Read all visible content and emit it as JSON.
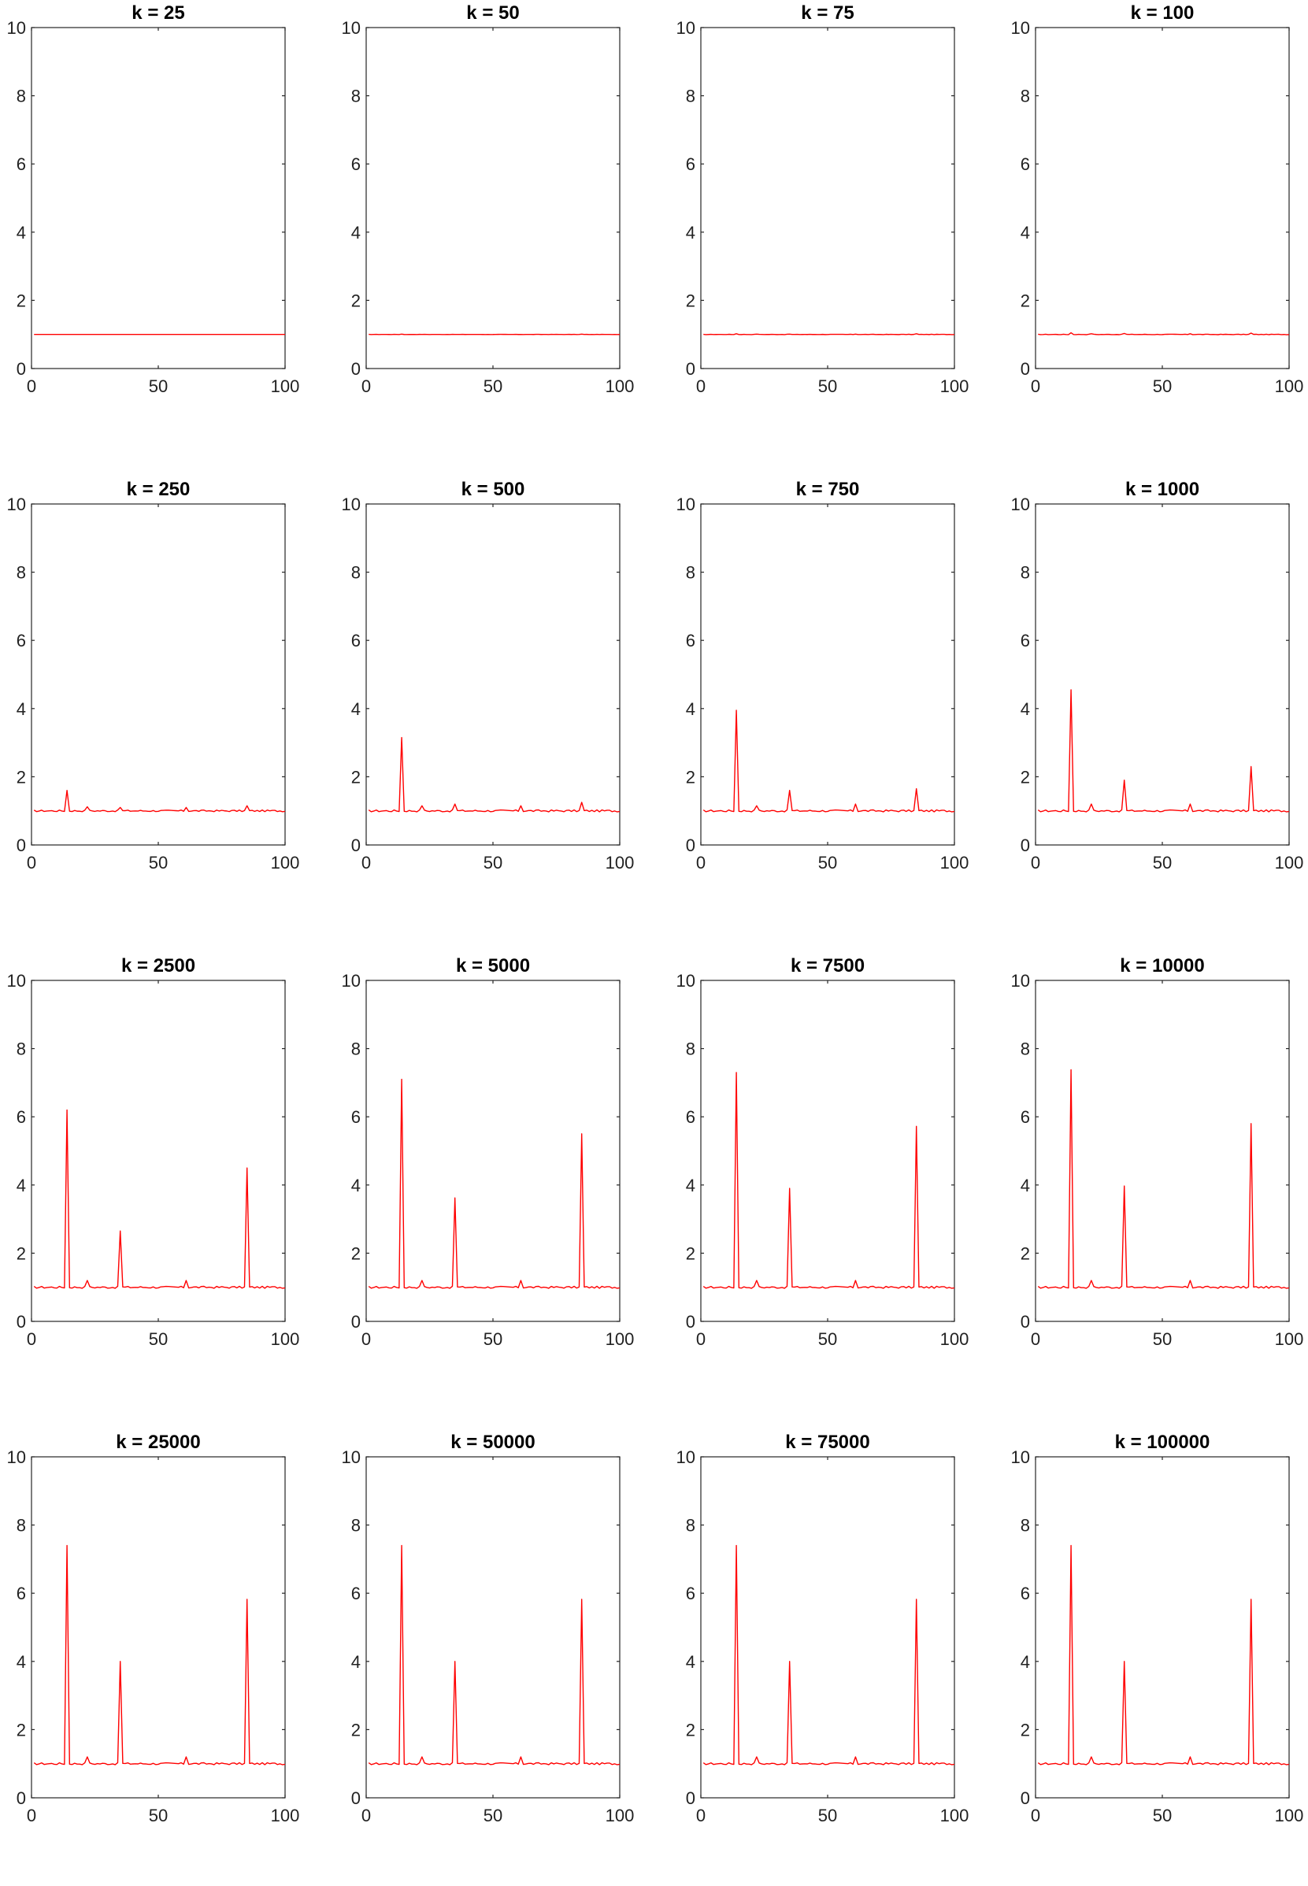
{
  "figure": {
    "line_color": "#ff0000",
    "axis_color": "#262626"
  },
  "chart_data": [
    {
      "type": "line",
      "title": "k = 25",
      "xlim": [
        0,
        100
      ],
      "ylim": [
        0,
        10
      ],
      "xticks": [
        "0",
        "50",
        "100"
      ],
      "yticks": [
        "0",
        "2",
        "4",
        "6",
        "8",
        "10"
      ],
      "peaks": [
        [
          14,
          1.0
        ],
        [
          22,
          1.0
        ],
        [
          35,
          1.0
        ],
        [
          61,
          1.0
        ],
        [
          85,
          1.0
        ]
      ],
      "noise": 0.0
    },
    {
      "type": "line",
      "title": "k = 50",
      "xlim": [
        0,
        100
      ],
      "ylim": [
        0,
        10
      ],
      "xticks": [
        "0",
        "50",
        "100"
      ],
      "yticks": [
        "0",
        "2",
        "4",
        "6",
        "8",
        "10"
      ],
      "peaks": [
        [
          14,
          1.01
        ],
        [
          22,
          1.0
        ],
        [
          35,
          1.0
        ],
        [
          61,
          1.0
        ],
        [
          85,
          1.01
        ]
      ],
      "noise": 0.005
    },
    {
      "type": "line",
      "title": "k = 75",
      "xlim": [
        0,
        100
      ],
      "ylim": [
        0,
        10
      ],
      "xticks": [
        "0",
        "50",
        "100"
      ],
      "yticks": [
        "0",
        "2",
        "4",
        "6",
        "8",
        "10"
      ],
      "peaks": [
        [
          14,
          1.02
        ],
        [
          22,
          1.01
        ],
        [
          35,
          1.01
        ],
        [
          61,
          1.01
        ],
        [
          85,
          1.02
        ]
      ],
      "noise": 0.01
    },
    {
      "type": "line",
      "title": "k = 100",
      "xlim": [
        0,
        100
      ],
      "ylim": [
        0,
        10
      ],
      "xticks": [
        "0",
        "50",
        "100"
      ],
      "yticks": [
        "0",
        "2",
        "4",
        "6",
        "8",
        "10"
      ],
      "peaks": [
        [
          14,
          1.05
        ],
        [
          22,
          1.02
        ],
        [
          35,
          1.03
        ],
        [
          61,
          1.02
        ],
        [
          85,
          1.04
        ]
      ],
      "noise": 0.015
    },
    {
      "type": "line",
      "title": "k = 250",
      "xlim": [
        0,
        100
      ],
      "ylim": [
        0,
        10
      ],
      "xticks": [
        "0",
        "50",
        "100"
      ],
      "yticks": [
        "0",
        "2",
        "4",
        "6",
        "8",
        "10"
      ],
      "peaks": [
        [
          14,
          1.6
        ],
        [
          22,
          1.12
        ],
        [
          35,
          1.1
        ],
        [
          61,
          1.1
        ],
        [
          85,
          1.15
        ]
      ],
      "noise": 0.05
    },
    {
      "type": "line",
      "title": "k = 500",
      "xlim": [
        0,
        100
      ],
      "ylim": [
        0,
        10
      ],
      "xticks": [
        "0",
        "50",
        "100"
      ],
      "yticks": [
        "0",
        "2",
        "4",
        "6",
        "8",
        "10"
      ],
      "peaks": [
        [
          14,
          3.15
        ],
        [
          22,
          1.15
        ],
        [
          35,
          1.2
        ],
        [
          61,
          1.15
        ],
        [
          85,
          1.25
        ]
      ],
      "noise": 0.06
    },
    {
      "type": "line",
      "title": "k = 750",
      "xlim": [
        0,
        100
      ],
      "ylim": [
        0,
        10
      ],
      "xticks": [
        "0",
        "50",
        "100"
      ],
      "yticks": [
        "0",
        "2",
        "4",
        "6",
        "8",
        "10"
      ],
      "peaks": [
        [
          14,
          3.95
        ],
        [
          22,
          1.15
        ],
        [
          35,
          1.6
        ],
        [
          61,
          1.2
        ],
        [
          85,
          1.65
        ]
      ],
      "noise": 0.06
    },
    {
      "type": "line",
      "title": "k = 1000",
      "xlim": [
        0,
        100
      ],
      "ylim": [
        0,
        10
      ],
      "xticks": [
        "0",
        "50",
        "100"
      ],
      "yticks": [
        "0",
        "2",
        "4",
        "6",
        "8",
        "10"
      ],
      "peaks": [
        [
          14,
          4.55
        ],
        [
          22,
          1.2
        ],
        [
          35,
          1.9
        ],
        [
          61,
          1.2
        ],
        [
          85,
          2.3
        ]
      ],
      "noise": 0.06
    },
    {
      "type": "line",
      "title": "k = 2500",
      "xlim": [
        0,
        100
      ],
      "ylim": [
        0,
        10
      ],
      "xticks": [
        "0",
        "50",
        "100"
      ],
      "yticks": [
        "0",
        "2",
        "4",
        "6",
        "8",
        "10"
      ],
      "peaks": [
        [
          14,
          6.2
        ],
        [
          22,
          1.2
        ],
        [
          35,
          2.65
        ],
        [
          61,
          1.2
        ],
        [
          85,
          4.5
        ]
      ],
      "noise": 0.06
    },
    {
      "type": "line",
      "title": "k = 5000",
      "xlim": [
        0,
        100
      ],
      "ylim": [
        0,
        10
      ],
      "xticks": [
        "0",
        "50",
        "100"
      ],
      "yticks": [
        "0",
        "2",
        "4",
        "6",
        "8",
        "10"
      ],
      "peaks": [
        [
          14,
          7.1
        ],
        [
          22,
          1.2
        ],
        [
          35,
          3.62
        ],
        [
          61,
          1.2
        ],
        [
          85,
          5.5
        ]
      ],
      "noise": 0.06
    },
    {
      "type": "line",
      "title": "k = 7500",
      "xlim": [
        0,
        100
      ],
      "ylim": [
        0,
        10
      ],
      "xticks": [
        "0",
        "50",
        "100"
      ],
      "yticks": [
        "0",
        "2",
        "4",
        "6",
        "8",
        "10"
      ],
      "peaks": [
        [
          14,
          7.3
        ],
        [
          22,
          1.2
        ],
        [
          35,
          3.9
        ],
        [
          61,
          1.2
        ],
        [
          85,
          5.72
        ]
      ],
      "noise": 0.06
    },
    {
      "type": "line",
      "title": "k = 10000",
      "xlim": [
        0,
        100
      ],
      "ylim": [
        0,
        10
      ],
      "xticks": [
        "0",
        "50",
        "100"
      ],
      "yticks": [
        "0",
        "2",
        "4",
        "6",
        "8",
        "10"
      ],
      "peaks": [
        [
          14,
          7.38
        ],
        [
          22,
          1.2
        ],
        [
          35,
          3.97
        ],
        [
          61,
          1.2
        ],
        [
          85,
          5.8
        ]
      ],
      "noise": 0.06
    },
    {
      "type": "line",
      "title": "k = 25000",
      "xlim": [
        0,
        100
      ],
      "ylim": [
        0,
        10
      ],
      "xticks": [
        "0",
        "50",
        "100"
      ],
      "yticks": [
        "0",
        "2",
        "4",
        "6",
        "8",
        "10"
      ],
      "peaks": [
        [
          14,
          7.4
        ],
        [
          22,
          1.2
        ],
        [
          35,
          4.0
        ],
        [
          61,
          1.2
        ],
        [
          85,
          5.82
        ]
      ],
      "noise": 0.06
    },
    {
      "type": "line",
      "title": "k = 50000",
      "xlim": [
        0,
        100
      ],
      "ylim": [
        0,
        10
      ],
      "xticks": [
        "0",
        "50",
        "100"
      ],
      "yticks": [
        "0",
        "2",
        "4",
        "6",
        "8",
        "10"
      ],
      "peaks": [
        [
          14,
          7.4
        ],
        [
          22,
          1.2
        ],
        [
          35,
          4.0
        ],
        [
          61,
          1.2
        ],
        [
          85,
          5.82
        ]
      ],
      "noise": 0.06
    },
    {
      "type": "line",
      "title": "k = 75000",
      "xlim": [
        0,
        100
      ],
      "ylim": [
        0,
        10
      ],
      "xticks": [
        "0",
        "50",
        "100"
      ],
      "yticks": [
        "0",
        "2",
        "4",
        "6",
        "8",
        "10"
      ],
      "peaks": [
        [
          14,
          7.4
        ],
        [
          22,
          1.2
        ],
        [
          35,
          4.0
        ],
        [
          61,
          1.2
        ],
        [
          85,
          5.82
        ]
      ],
      "noise": 0.06
    },
    {
      "type": "line",
      "title": "k = 100000",
      "xlim": [
        0,
        100
      ],
      "ylim": [
        0,
        10
      ],
      "xticks": [
        "0",
        "50",
        "100"
      ],
      "yticks": [
        "0",
        "2",
        "4",
        "6",
        "8",
        "10"
      ],
      "peaks": [
        [
          14,
          7.4
        ],
        [
          22,
          1.2
        ],
        [
          35,
          4.0
        ],
        [
          61,
          1.2
        ],
        [
          85,
          5.82
        ]
      ],
      "noise": 0.06
    }
  ]
}
